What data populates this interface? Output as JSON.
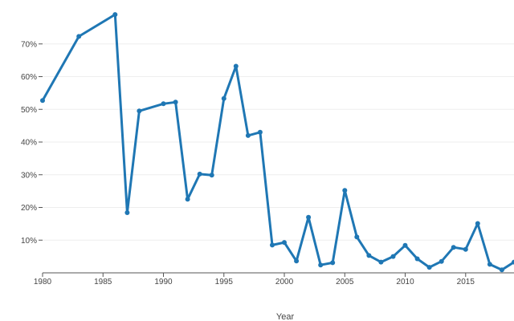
{
  "chart_data": {
    "type": "line",
    "title": "",
    "xlabel": "Year",
    "ylabel": "",
    "xlim": [
      1980,
      2019
    ],
    "ylim": [
      0,
      0.8
    ],
    "x_ticks": [
      {
        "value": 1980,
        "label": "1980"
      },
      {
        "value": 1985,
        "label": "1985"
      },
      {
        "value": 1990,
        "label": "1990"
      },
      {
        "value": 1995,
        "label": "1995"
      },
      {
        "value": 2000,
        "label": "2000"
      },
      {
        "value": 2005,
        "label": "2005"
      },
      {
        "value": 2010,
        "label": "2010"
      },
      {
        "value": 2015,
        "label": "2015"
      }
    ],
    "y_ticks": [
      {
        "value": 0.1,
        "label": "10%"
      },
      {
        "value": 0.2,
        "label": "20%"
      },
      {
        "value": 0.3,
        "label": "30%"
      },
      {
        "value": 0.4,
        "label": "40%"
      },
      {
        "value": 0.5,
        "label": "50%"
      },
      {
        "value": 0.6,
        "label": "60%"
      },
      {
        "value": 0.7,
        "label": "70%"
      }
    ],
    "grid": true,
    "line_color": "#1f77b4",
    "grid_color": "#eeeeee",
    "series": [
      {
        "x": [
          1980,
          1983,
          1986,
          1987,
          1988,
          1990,
          1991,
          1992,
          1993,
          1994,
          1995,
          1996,
          1997,
          1998,
          1999,
          2000,
          2001,
          2002,
          2003,
          2004,
          2005,
          2006,
          2007,
          2008,
          2009,
          2010,
          2011,
          2012,
          2013,
          2014,
          2015,
          2016,
          2017,
          2018,
          2019
        ],
        "y": [
          0.527,
          0.723,
          0.79,
          0.184,
          0.495,
          0.517,
          0.522,
          0.225,
          0.302,
          0.299,
          0.533,
          0.632,
          0.42,
          0.43,
          0.085,
          0.093,
          0.036,
          0.17,
          0.024,
          0.031,
          0.252,
          0.11,
          0.053,
          0.033,
          0.05,
          0.084,
          0.043,
          0.017,
          0.035,
          0.078,
          0.072,
          0.151,
          0.026,
          0.009,
          0.033
        ]
      }
    ]
  }
}
